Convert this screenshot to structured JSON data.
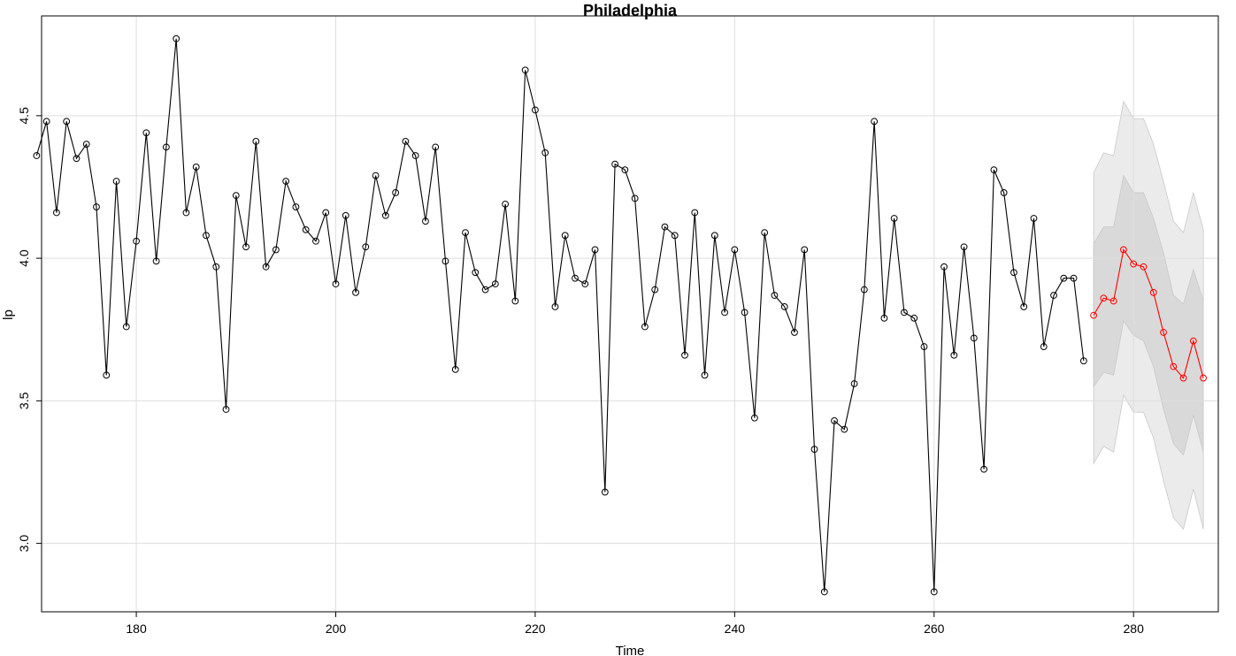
{
  "chart_data": {
    "type": "line",
    "title": "Philadelphia",
    "xlabel": "Time",
    "ylabel": "lp",
    "xlim": [
      170.5,
      288.5
    ],
    "ylim": [
      2.76,
      4.85
    ],
    "xticks": [
      180,
      200,
      220,
      240,
      260,
      280
    ],
    "yticks": [
      3.0,
      3.5,
      4.0,
      4.5
    ],
    "ytick_labels": [
      "3.0",
      "3.5",
      "4.0",
      "4.5"
    ],
    "grid": true,
    "series": [
      {
        "name": "",
        "color": "#000000",
        "x_start": 170,
        "values": [
          4.36,
          4.48,
          4.16,
          4.48,
          4.35,
          4.4,
          4.18,
          3.59,
          4.27,
          3.76,
          4.06,
          4.44,
          3.99,
          4.39,
          4.77,
          4.16,
          4.32,
          4.08,
          3.97,
          3.47,
          4.22,
          4.04,
          4.41,
          3.97,
          4.03,
          4.27,
          4.18,
          4.1,
          4.06,
          4.16,
          3.91,
          4.15,
          3.88,
          4.04,
          4.29,
          4.15,
          4.23,
          4.41,
          4.36,
          4.13,
          4.39,
          3.99,
          3.61,
          4.09,
          3.95,
          3.89,
          3.91,
          4.19,
          3.85,
          4.66,
          4.52,
          4.37,
          3.83,
          4.08,
          3.93,
          3.91,
          4.03,
          3.18,
          4.33,
          4.31,
          4.21,
          3.76,
          3.89,
          4.11,
          4.08,
          3.66,
          4.16,
          3.59,
          4.08,
          3.81,
          4.03,
          3.81,
          3.44,
          4.09,
          3.87,
          3.83,
          3.74,
          4.03,
          3.33,
          2.83,
          3.43,
          3.4,
          3.56,
          3.89,
          4.48,
          3.79,
          4.14,
          3.81,
          3.79,
          3.69,
          2.83,
          3.97,
          3.66,
          4.04,
          3.72,
          3.26,
          4.31,
          4.23,
          3.95,
          3.83,
          4.14,
          3.69,
          3.87,
          3.93,
          3.93,
          3.64
        ]
      },
      {
        "name": "",
        "color": "#ff0000",
        "x_start": 276,
        "values": [
          3.8,
          3.86,
          3.85,
          4.03,
          3.98,
          3.97,
          3.88,
          3.74,
          3.62,
          3.58,
          3.71,
          3.58
        ],
        "band_inner": {
          "color": "#d9d9d9",
          "lower": [
            3.55,
            3.6,
            3.59,
            3.78,
            3.73,
            3.71,
            3.62,
            3.47,
            3.35,
            3.31,
            3.45,
            3.32
          ],
          "upper": [
            4.05,
            4.11,
            4.11,
            4.29,
            4.23,
            4.23,
            4.14,
            4.02,
            3.87,
            3.84,
            3.96,
            3.85
          ]
        },
        "band_outer": {
          "color": "#ebebeb",
          "lower": [
            3.28,
            3.34,
            3.32,
            3.52,
            3.46,
            3.46,
            3.37,
            3.22,
            3.09,
            3.05,
            3.19,
            3.05
          ],
          "upper": [
            4.3,
            4.37,
            4.36,
            4.55,
            4.49,
            4.49,
            4.4,
            4.27,
            4.13,
            4.09,
            4.23,
            4.1
          ]
        }
      }
    ]
  }
}
